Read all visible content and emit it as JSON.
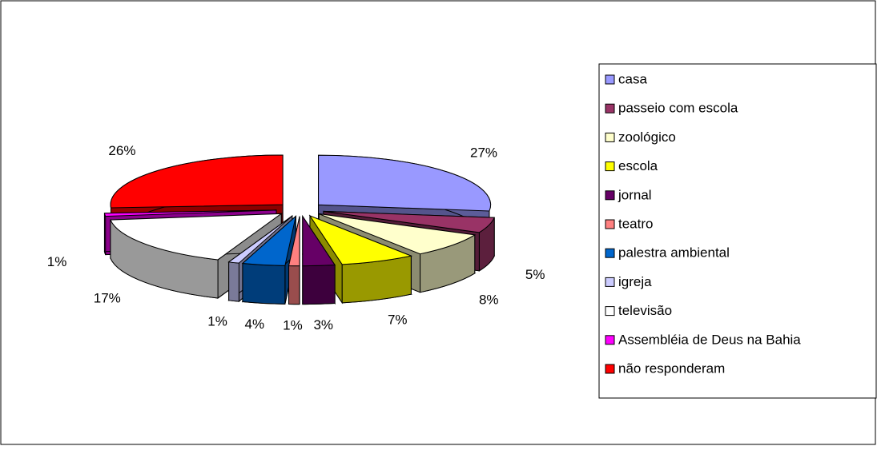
{
  "chart_data": {
    "type": "pie",
    "categories": [
      "casa",
      "passeio com escola",
      "zoológico",
      "escola",
      "jornal",
      "teatro",
      "palestra ambiental",
      "igreja",
      "televisão",
      "Assembléia de Deus na Bahia",
      "não responderam"
    ],
    "values": [
      27,
      5,
      8,
      7,
      3,
      1,
      4,
      1,
      17,
      1,
      26
    ],
    "value_labels": [
      "27%",
      "5%",
      "8%",
      "7%",
      "3%",
      "1%",
      "4%",
      "1%",
      "17%",
      "1%",
      "26%"
    ],
    "colors": [
      "#9999ff",
      "#993366",
      "#ffffcc",
      "#ffff00",
      "#660066",
      "#ff8080",
      "#0066cc",
      "#ccccff",
      "#ffffff",
      "#ff00ff",
      "#ff0000"
    ],
    "legend": "right"
  }
}
